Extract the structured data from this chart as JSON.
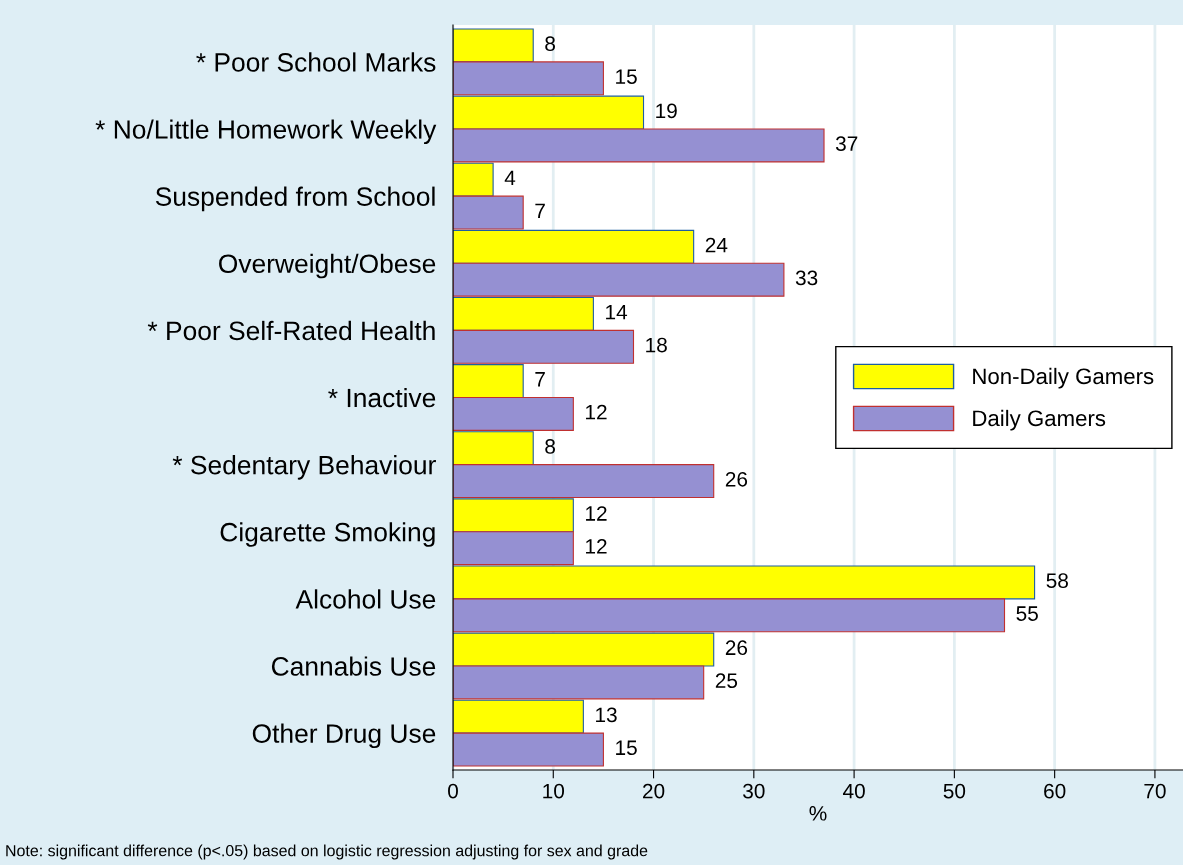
{
  "chart_data": {
    "type": "bar",
    "orientation": "horizontal",
    "xlabel": "%",
    "categories": [
      "* Poor School Marks",
      "* No/Little Homework Weekly",
      "Suspended from School",
      "Overweight/Obese",
      "* Poor Self-Rated Health",
      "* Inactive",
      "* Sedentary Behaviour",
      "Cigarette Smoking",
      "Alcohol Use",
      "Cannabis Use",
      "Other Drug Use"
    ],
    "series": [
      {
        "name": "Non-Daily Gamers",
        "color": "#ffff00",
        "values": [
          8,
          19,
          4,
          24,
          14,
          7,
          8,
          12,
          58,
          26,
          13
        ]
      },
      {
        "name": "Daily Gamers",
        "color": "#9590d2",
        "values": [
          15,
          37,
          7,
          33,
          18,
          12,
          26,
          12,
          55,
          25,
          15
        ]
      }
    ],
    "xlim": [
      0,
      72.8
    ],
    "xticks": [
      0,
      10,
      20,
      30,
      40,
      50,
      60,
      70
    ],
    "grid": "x",
    "legend": "right",
    "data_labels": true,
    "annotations": [
      "Note: significant difference (p<.05) based on logistic regression adjusting for sex and grade"
    ]
  }
}
